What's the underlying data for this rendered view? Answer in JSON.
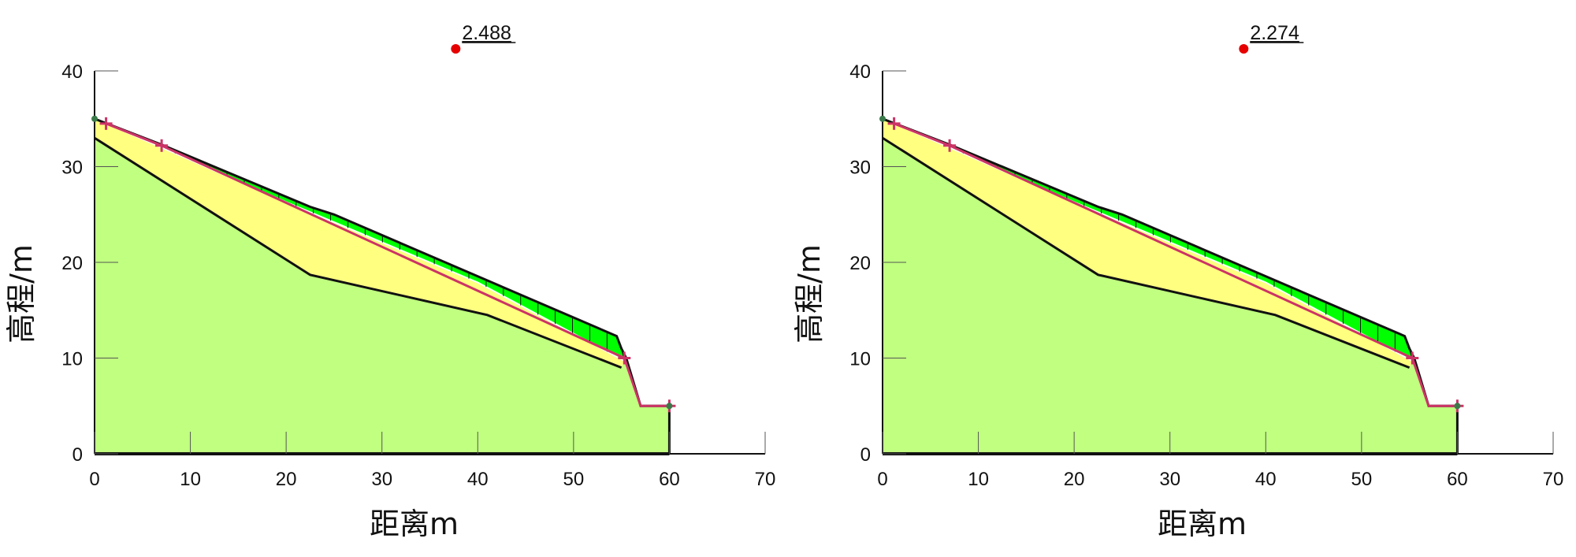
{
  "chart_data": [
    {
      "type": "area",
      "title": "",
      "xlabel": "距离m",
      "ylabel": "高程/m",
      "xlim": [
        0,
        70
      ],
      "ylim": [
        0,
        40
      ],
      "xticks": [
        "0",
        "10",
        "20",
        "30",
        "40",
        "50",
        "60",
        "70"
      ],
      "yticks": [
        "0",
        "10",
        "20",
        "30",
        "40"
      ],
      "grid": false,
      "factor_of_safety": {
        "label": "2.488",
        "x": 37.7,
        "y": 42.3
      },
      "ground_surface": [
        [
          0,
          35
        ],
        [
          7,
          32.3
        ],
        [
          22.5,
          25.8
        ],
        [
          25,
          25
        ],
        [
          54.5,
          12.3
        ],
        [
          55,
          11
        ],
        [
          55.5,
          10
        ],
        [
          57,
          5
        ],
        [
          60,
          5
        ],
        [
          60,
          0
        ],
        [
          0,
          0
        ]
      ],
      "bedrock_boundary": [
        [
          0,
          33
        ],
        [
          22.5,
          18.7
        ],
        [
          41,
          14.5
        ],
        [
          55,
          9
        ]
      ],
      "slip_surface": [
        [
          1.2,
          34.5
        ],
        [
          7,
          32
        ],
        [
          20,
          26.3
        ],
        [
          40,
          17.9
        ],
        [
          55.3,
          9.7
        ]
      ],
      "slice_count": 30,
      "search_points": [
        [
          1.2,
          34.5
        ],
        [
          7,
          32.2
        ],
        [
          55.3,
          10
        ],
        [
          60,
          5
        ]
      ],
      "trial_path": [
        [
          1.2,
          34.5
        ],
        [
          7,
          32.2
        ],
        [
          55.3,
          10
        ],
        [
          57,
          5
        ],
        [
          60,
          5
        ]
      ],
      "colors": {
        "sliding_mass": "#00ff00",
        "weak_layer": "#ffff80",
        "bedrock": "#c0ff80",
        "fos_marker": "#e60000",
        "search_points": "#cc3366"
      }
    },
    {
      "type": "area",
      "title": "",
      "xlabel": "距离m",
      "ylabel": "高程/m",
      "xlim": [
        0,
        70
      ],
      "ylim": [
        0,
        40
      ],
      "xticks": [
        "0",
        "10",
        "20",
        "30",
        "40",
        "50",
        "60",
        "70"
      ],
      "yticks": [
        "0",
        "10",
        "20",
        "30",
        "40"
      ],
      "grid": false,
      "factor_of_safety": {
        "label": "2.274",
        "x": 37.7,
        "y": 42.3
      },
      "ground_surface": [
        [
          0,
          35
        ],
        [
          7,
          32.3
        ],
        [
          22.5,
          25.8
        ],
        [
          25,
          25
        ],
        [
          54.5,
          12.3
        ],
        [
          55,
          11
        ],
        [
          55.5,
          10
        ],
        [
          57,
          5
        ],
        [
          60,
          5
        ],
        [
          60,
          0
        ],
        [
          0,
          0
        ]
      ],
      "bedrock_boundary": [
        [
          0,
          33
        ],
        [
          22.5,
          18.7
        ],
        [
          41,
          14.5
        ],
        [
          55,
          9
        ]
      ],
      "slip_surface": [
        [
          1.2,
          34.5
        ],
        [
          7,
          32
        ],
        [
          20,
          26.3
        ],
        [
          40,
          17.9
        ],
        [
          55.3,
          9.7
        ]
      ],
      "slice_count": 30,
      "search_points": [
        [
          1.2,
          34.5
        ],
        [
          7,
          32.2
        ],
        [
          55.3,
          10
        ],
        [
          60,
          5
        ]
      ],
      "trial_path": [
        [
          1.2,
          34.5
        ],
        [
          7,
          32.2
        ],
        [
          55.3,
          10
        ],
        [
          57,
          5
        ],
        [
          60,
          5
        ]
      ],
      "colors": {
        "sliding_mass": "#00ff00",
        "weak_layer": "#ffff80",
        "bedrock": "#c0ff80",
        "fos_marker": "#e60000",
        "search_points": "#cc3366"
      }
    }
  ]
}
